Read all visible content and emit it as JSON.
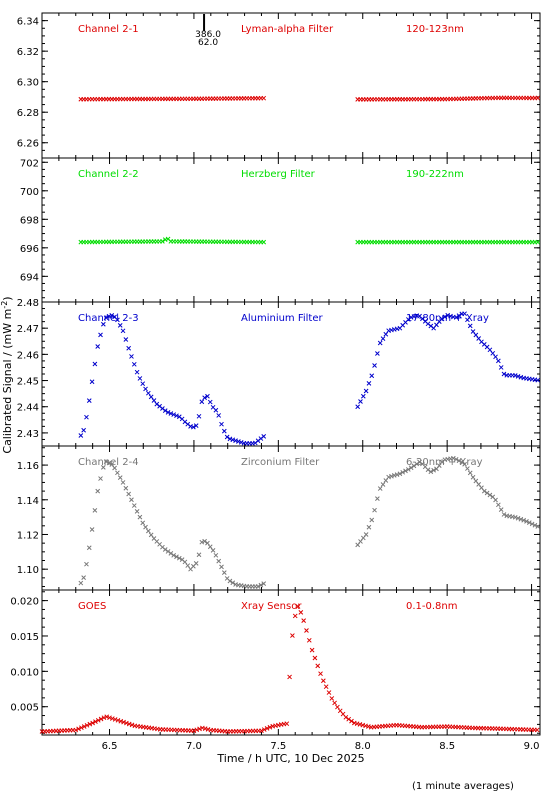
{
  "chart_data": {
    "type": "scatter",
    "xlabel": "Time / h UTC, 10 Dec 2025",
    "ylabel": "Calibrated Signal / (mW m",
    "ylabel_sup": "-2",
    "ylabel_close": ")",
    "x_range": [
      6.1,
      9.05
    ],
    "x_ticks": [
      6.5,
      7.0,
      7.5,
      8.0,
      8.5,
      9.0
    ],
    "x_tick_labels": [
      "6.5",
      "7.0",
      "7.5",
      "8.0",
      "8.5",
      "9.0"
    ],
    "footnote": "(1 minute averages)",
    "panels": [
      {
        "name": "Channel 2-1",
        "filter": "Lyman-alpha Filter",
        "band": "120-123nm",
        "color": "#dd0000",
        "ylim": [
          6.25,
          6.345
        ],
        "y_ticks": [
          6.26,
          6.28,
          6.3,
          6.32,
          6.34
        ],
        "y_tick_labels": [
          "6.26",
          "6.28",
          "6.30",
          "6.32",
          "6.34"
        ],
        "annotation_top": "386.0",
        "annotation_bottom": "62.0",
        "annotation_x": 7.06,
        "segments": [
          {
            "x_start": 6.33,
            "x_end": 7.42,
            "points": [
              [
                6.33,
                6.2885
              ],
              [
                7.0,
                6.2888
              ],
              [
                7.42,
                6.2892
              ]
            ]
          },
          {
            "x_start": 7.97,
            "x_end": 9.05,
            "points": [
              [
                7.97,
                6.2884
              ],
              [
                8.5,
                6.2886
              ],
              [
                8.8,
                6.2894
              ],
              [
                9.05,
                6.2893
              ]
            ]
          }
        ]
      },
      {
        "name": "Channel 2-2",
        "filter": "Herzberg Filter",
        "band": "190-222nm",
        "color": "#00dd00",
        "ylim": [
          692.2,
          702.3
        ],
        "y_ticks": [
          694,
          696,
          698,
          700,
          702
        ],
        "y_tick_labels": [
          "694",
          "696",
          "698",
          "700",
          "702"
        ],
        "segments": [
          {
            "x_start": 6.33,
            "x_end": 7.42,
            "points": [
              [
                6.33,
                696.4
              ],
              [
                6.82,
                696.45
              ],
              [
                6.84,
                696.7
              ],
              [
                6.86,
                696.45
              ],
              [
                7.42,
                696.4
              ]
            ]
          },
          {
            "x_start": 7.97,
            "x_end": 9.05,
            "points": [
              [
                7.97,
                696.4
              ],
              [
                9.05,
                696.4
              ]
            ]
          }
        ]
      },
      {
        "name": "Channel 2-3",
        "filter": "Aluminium Filter",
        "band": "17-80nm + Xray",
        "color": "#0000cc",
        "ylim": [
          2.425,
          2.48
        ],
        "y_ticks": [
          2.43,
          2.44,
          2.45,
          2.46,
          2.47,
          2.48
        ],
        "y_tick_labels": [
          "2.43",
          "2.44",
          "2.45",
          "2.46",
          "2.47",
          "2.48"
        ],
        "segments": [
          {
            "x_start": 6.33,
            "x_end": 7.42,
            "points": [
              [
                6.34,
                2.429
              ],
              [
                6.37,
                2.438
              ],
              [
                6.4,
                2.451
              ],
              [
                6.43,
                2.463
              ],
              [
                6.46,
                2.471
              ],
              [
                6.48,
                2.474
              ],
              [
                6.51,
                2.475
              ],
              [
                6.54,
                2.474
              ],
              [
                6.58,
                2.469
              ],
              [
                6.62,
                2.461
              ],
              [
                6.67,
                2.452
              ],
              [
                6.72,
                2.446
              ],
              [
                6.78,
                2.441
              ],
              [
                6.84,
                2.438
              ],
              [
                6.88,
                2.437
              ],
              [
                6.92,
                2.436
              ],
              [
                6.95,
                2.434
              ],
              [
                6.99,
                2.432
              ],
              [
                7.02,
                2.433
              ],
              [
                7.05,
                2.443
              ],
              [
                7.08,
                2.444
              ],
              [
                7.11,
                2.44
              ],
              [
                7.14,
                2.438
              ],
              [
                7.17,
                2.432
              ],
              [
                7.2,
                2.428
              ],
              [
                7.25,
                2.427
              ],
              [
                7.3,
                2.426
              ],
              [
                7.36,
                2.426
              ],
              [
                7.42,
                2.429
              ]
            ]
          },
          {
            "x_start": 7.97,
            "x_end": 9.05,
            "points": [
              [
                7.97,
                2.44
              ],
              [
                8.02,
                2.446
              ],
              [
                8.06,
                2.453
              ],
              [
                8.1,
                2.464
              ],
              [
                8.15,
                2.469
              ],
              [
                8.22,
                2.47
              ],
              [
                8.28,
                2.474
              ],
              [
                8.33,
                2.475
              ],
              [
                8.38,
                2.472
              ],
              [
                8.42,
                2.47
              ],
              [
                8.46,
                2.473
              ],
              [
                8.5,
                2.475
              ],
              [
                8.55,
                2.474
              ],
              [
                8.6,
                2.476
              ],
              [
                8.65,
                2.469
              ],
              [
                8.7,
                2.465
              ],
              [
                8.75,
                2.462
              ],
              [
                8.8,
                2.458
              ],
              [
                8.84,
                2.452
              ],
              [
                8.9,
                2.452
              ],
              [
                8.95,
                2.451
              ],
              [
                9.05,
                2.45
              ]
            ]
          }
        ]
      },
      {
        "name": "Channel 2-4",
        "filter": "Zirconium Filter",
        "band": "6-20nm + Xray",
        "color": "#777777",
        "ylim": [
          1.088,
          1.171
        ],
        "y_ticks": [
          1.1,
          1.12,
          1.14,
          1.16
        ],
        "y_tick_labels": [
          "1.10",
          "1.12",
          "1.14",
          "1.16"
        ],
        "segments": [
          {
            "x_start": 6.33,
            "x_end": 7.42,
            "points": [
              [
                6.34,
                1.092
              ],
              [
                6.37,
                1.106
              ],
              [
                6.4,
                1.125
              ],
              [
                6.43,
                1.145
              ],
              [
                6.46,
                1.158
              ],
              [
                6.48,
                1.162
              ],
              [
                6.52,
                1.16
              ],
              [
                6.58,
                1.15
              ],
              [
                6.64,
                1.138
              ],
              [
                6.7,
                1.126
              ],
              [
                6.76,
                1.118
              ],
              [
                6.82,
                1.112
              ],
              [
                6.88,
                1.108
              ],
              [
                6.94,
                1.105
              ],
              [
                6.98,
                1.1
              ],
              [
                7.02,
                1.104
              ],
              [
                7.05,
                1.117
              ],
              [
                7.08,
                1.115
              ],
              [
                7.12,
                1.11
              ],
              [
                7.16,
                1.102
              ],
              [
                7.2,
                1.094
              ],
              [
                7.25,
                1.091
              ],
              [
                7.32,
                1.09
              ],
              [
                7.38,
                1.09
              ],
              [
                7.42,
                1.092
              ]
            ]
          },
          {
            "x_start": 7.97,
            "x_end": 9.05,
            "points": [
              [
                7.97,
                1.114
              ],
              [
                8.02,
                1.12
              ],
              [
                8.06,
                1.13
              ],
              [
                8.1,
                1.146
              ],
              [
                8.15,
                1.153
              ],
              [
                8.22,
                1.155
              ],
              [
                8.28,
                1.158
              ],
              [
                8.34,
                1.162
              ],
              [
                8.4,
                1.156
              ],
              [
                8.44,
                1.158
              ],
              [
                8.48,
                1.163
              ],
              [
                8.54,
                1.164
              ],
              [
                8.6,
                1.161
              ],
              [
                8.66,
                1.152
              ],
              [
                8.72,
                1.145
              ],
              [
                8.78,
                1.141
              ],
              [
                8.84,
                1.131
              ],
              [
                8.9,
                1.13
              ],
              [
                8.96,
                1.128
              ],
              [
                9.05,
                1.124
              ]
            ]
          }
        ]
      },
      {
        "name": "GOES",
        "filter": "Xray Sensor",
        "band": "0.1-0.8nm",
        "color": "#dd0000",
        "ylim": [
          0.001,
          0.0215
        ],
        "y_ticks": [
          0.005,
          0.01,
          0.015,
          0.02
        ],
        "y_tick_labels": [
          "0.005",
          "0.010",
          "0.015",
          "0.020"
        ],
        "segments": [
          {
            "x_start": 6.1,
            "x_end": 9.05,
            "points": [
              [
                6.1,
                0.0015
              ],
              [
                6.3,
                0.0017
              ],
              [
                6.4,
                0.0027
              ],
              [
                6.48,
                0.0036
              ],
              [
                6.56,
                0.003
              ],
              [
                6.65,
                0.0023
              ],
              [
                6.8,
                0.0018
              ],
              [
                7.0,
                0.0016
              ],
              [
                7.05,
                0.002
              ],
              [
                7.1,
                0.0017
              ],
              [
                7.2,
                0.0015
              ],
              [
                7.4,
                0.0016
              ],
              [
                7.46,
                0.0022
              ],
              [
                7.52,
                0.0025
              ],
              [
                7.55,
                0.0026
              ],
              [
                7.58,
                0.0145
              ],
              [
                7.61,
                0.0195
              ],
              [
                7.64,
                0.018
              ],
              [
                7.67,
                0.0155
              ],
              [
                7.7,
                0.013
              ],
              [
                7.73,
                0.011
              ],
              [
                7.76,
                0.009
              ],
              [
                7.79,
                0.0075
              ],
              [
                7.82,
                0.006
              ],
              [
                7.86,
                0.0046
              ],
              [
                7.9,
                0.0035
              ],
              [
                7.95,
                0.0027
              ],
              [
                8.05,
                0.0021
              ],
              [
                8.2,
                0.0024
              ],
              [
                8.35,
                0.0021
              ],
              [
                8.5,
                0.0022
              ],
              [
                8.65,
                0.002
              ],
              [
                8.8,
                0.0019
              ],
              [
                9.05,
                0.0017
              ]
            ]
          }
        ]
      }
    ]
  }
}
